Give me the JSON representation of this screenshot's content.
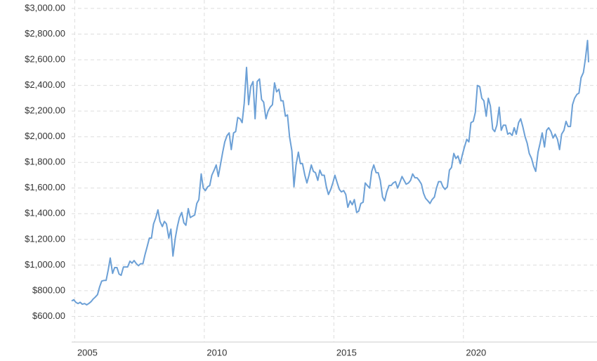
{
  "chart_data": {
    "type": "line",
    "x": [
      2004.88,
      2004.96,
      2005.04,
      2005.13,
      2005.21,
      2005.29,
      2005.38,
      2005.46,
      2005.54,
      2005.63,
      2005.71,
      2005.79,
      2005.88,
      2005.96,
      2006.04,
      2006.13,
      2006.21,
      2006.29,
      2006.37,
      2006.46,
      2006.54,
      2006.63,
      2006.71,
      2006.79,
      2006.88,
      2006.96,
      2007.04,
      2007.13,
      2007.21,
      2007.29,
      2007.38,
      2007.46,
      2007.54,
      2007.63,
      2007.71,
      2007.79,
      2007.88,
      2007.96,
      2008.04,
      2008.13,
      2008.21,
      2008.29,
      2008.38,
      2008.46,
      2008.54,
      2008.63,
      2008.71,
      2008.79,
      2008.88,
      2008.96,
      2009.04,
      2009.13,
      2009.21,
      2009.29,
      2009.38,
      2009.46,
      2009.54,
      2009.63,
      2009.71,
      2009.79,
      2009.88,
      2009.96,
      2010.04,
      2010.13,
      2010.21,
      2010.29,
      2010.38,
      2010.46,
      2010.54,
      2010.63,
      2010.71,
      2010.79,
      2010.88,
      2010.96,
      2011.04,
      2011.13,
      2011.21,
      2011.29,
      2011.38,
      2011.46,
      2011.54,
      2011.63,
      2011.71,
      2011.79,
      2011.88,
      2011.96,
      2012.04,
      2012.13,
      2012.21,
      2012.29,
      2012.38,
      2012.46,
      2012.54,
      2012.63,
      2012.71,
      2012.79,
      2012.88,
      2012.96,
      2013.04,
      2013.13,
      2013.21,
      2013.29,
      2013.38,
      2013.46,
      2013.54,
      2013.63,
      2013.71,
      2013.79,
      2013.88,
      2013.96,
      2014.04,
      2014.13,
      2014.21,
      2014.29,
      2014.38,
      2014.46,
      2014.54,
      2014.63,
      2014.71,
      2014.79,
      2014.88,
      2014.96,
      2015.04,
      2015.13,
      2015.21,
      2015.29,
      2015.38,
      2015.46,
      2015.54,
      2015.63,
      2015.71,
      2015.79,
      2015.88,
      2015.96,
      2016.04,
      2016.13,
      2016.21,
      2016.29,
      2016.38,
      2016.46,
      2016.54,
      2016.63,
      2016.71,
      2016.79,
      2016.88,
      2016.96,
      2017.04,
      2017.13,
      2017.21,
      2017.29,
      2017.38,
      2017.46,
      2017.54,
      2017.63,
      2017.71,
      2017.79,
      2017.88,
      2017.96,
      2018.04,
      2018.13,
      2018.21,
      2018.29,
      2018.38,
      2018.46,
      2018.54,
      2018.63,
      2018.71,
      2018.79,
      2018.88,
      2018.96,
      2019.04,
      2019.13,
      2019.21,
      2019.29,
      2019.38,
      2019.46,
      2019.54,
      2019.63,
      2019.71,
      2019.79,
      2019.88,
      2019.96,
      2020.04,
      2020.13,
      2020.21,
      2020.29,
      2020.38,
      2020.46,
      2020.54,
      2020.63,
      2020.71,
      2020.79,
      2020.88,
      2020.96,
      2021.04,
      2021.13,
      2021.21,
      2021.29,
      2021.38,
      2021.46,
      2021.54,
      2021.63,
      2021.71,
      2021.79,
      2021.88,
      2021.96,
      2022.04,
      2022.13,
      2022.21,
      2022.29,
      2022.38,
      2022.46,
      2022.54,
      2022.63,
      2022.71,
      2022.79,
      2022.88,
      2022.96,
      2023.04,
      2023.13,
      2023.21,
      2023.29,
      2023.38,
      2023.46,
      2023.54,
      2023.63,
      2023.71,
      2023.79,
      2023.88,
      2023.96,
      2024.04,
      2024.13,
      2024.21,
      2024.29,
      2024.38,
      2024.46,
      2024.54,
      2024.63,
      2024.71,
      2024.79,
      2024.83
    ],
    "series": [
      {
        "color": "#6ca0d6",
        "values": [
          720,
          730,
          710,
          700,
          710,
          695,
          700,
          690,
          700,
          715,
          735,
          750,
          770,
          830,
          875,
          880,
          880,
          960,
          1055,
          935,
          980,
          980,
          930,
          920,
          985,
          985,
          985,
          1030,
          1015,
          1035,
          1010,
          995,
          1010,
          1010,
          1080,
          1140,
          1210,
          1210,
          1320,
          1370,
          1430,
          1340,
          1300,
          1340,
          1320,
          1210,
          1280,
          1070,
          1210,
          1300,
          1370,
          1410,
          1330,
          1310,
          1440,
          1370,
          1380,
          1390,
          1480,
          1510,
          1710,
          1600,
          1580,
          1610,
          1620,
          1700,
          1740,
          1780,
          1690,
          1790,
          1880,
          1960,
          2010,
          2030,
          1900,
          2030,
          2040,
          2150,
          2140,
          2110,
          2260,
          2540,
          2250,
          2390,
          2430,
          2140,
          2430,
          2450,
          2290,
          2270,
          2140,
          2200,
          2230,
          2250,
          2420,
          2350,
          2370,
          2280,
          2280,
          2160,
          2170,
          2000,
          1890,
          1610,
          1780,
          1880,
          1790,
          1790,
          1700,
          1640,
          1700,
          1780,
          1730,
          1720,
          1660,
          1740,
          1700,
          1700,
          1610,
          1550,
          1590,
          1640,
          1700,
          1640,
          1590,
          1570,
          1580,
          1550,
          1450,
          1500,
          1470,
          1510,
          1410,
          1420,
          1480,
          1490,
          1640,
          1620,
          1600,
          1730,
          1780,
          1720,
          1720,
          1660,
          1530,
          1500,
          1570,
          1620,
          1620,
          1640,
          1650,
          1600,
          1640,
          1690,
          1660,
          1630,
          1640,
          1660,
          1710,
          1680,
          1680,
          1660,
          1630,
          1560,
          1520,
          1500,
          1480,
          1510,
          1530,
          1600,
          1650,
          1650,
          1610,
          1590,
          1610,
          1740,
          1760,
          1870,
          1830,
          1850,
          1790,
          1860,
          1920,
          1980,
          1960,
          2110,
          2120,
          2190,
          2400,
          2390,
          2300,
          2280,
          2160,
          2300,
          2240,
          2060,
          2040,
          2090,
          2230,
          2050,
          2090,
          2090,
          2020,
          2030,
          2010,
          2070,
          2020,
          2110,
          2140,
          2080,
          2000,
          1950,
          1870,
          1830,
          1770,
          1730,
          1880,
          1950,
          2030,
          1920,
          2050,
          2070,
          2040,
          1990,
          2020,
          1980,
          1900,
          2020,
          2050,
          2120,
          2080,
          2080,
          2250,
          2300,
          2330,
          2340,
          2460,
          2500,
          2610,
          2750,
          2580
        ]
      }
    ],
    "xlim": [
      2004.88,
      2024.83
    ],
    "xticks": [
      2005,
      2010,
      2015,
      2020
    ],
    "ylim": [
      400,
      3000
    ],
    "yticks": [
      {
        "value": 600,
        "label": "$600.00"
      },
      {
        "value": 800,
        "label": "$800.00"
      },
      {
        "value": 1000,
        "label": "$1,000.00"
      },
      {
        "value": 1200,
        "label": "$1,200.00"
      },
      {
        "value": 1400,
        "label": "$1,400.00"
      },
      {
        "value": 1600,
        "label": "$1,600.00"
      },
      {
        "value": 1800,
        "label": "$1,800.00"
      },
      {
        "value": 2000,
        "label": "$2,000.00"
      },
      {
        "value": 2200,
        "label": "$2,200.00"
      },
      {
        "value": 2400,
        "label": "$2,400.00"
      },
      {
        "value": 2600,
        "label": "$2,600.00"
      },
      {
        "value": 2800,
        "label": "$2,800.00"
      },
      {
        "value": 3000,
        "label": "$3,000.00"
      }
    ],
    "grid": true
  }
}
